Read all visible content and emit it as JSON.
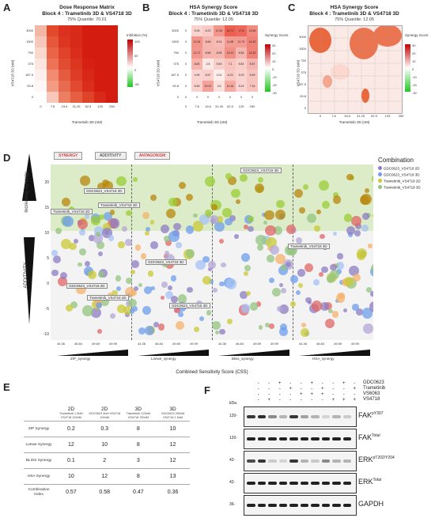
{
  "panel_a": {
    "letter": "A",
    "title": "Dose Response Matrix",
    "subtitle": "Block 4 : Trametinib 3D & VS4718 3D",
    "quantile": "75% Quantile: 70.01",
    "xlabel": "Trametinib 3D (nM)",
    "ylabel": "VS4718 3D (nM)",
    "legend_title": "Inhibition (%)",
    "legend_ticks": [
      "100",
      "50",
      "0",
      "-50"
    ],
    "x_ticks": [
      "0",
      "7.8",
      "15.6",
      "31.25",
      "62.5",
      "125",
      "250"
    ],
    "y_ticks": [
      "3000",
      "1500",
      "750",
      "375",
      "187.5",
      "93.8",
      "0"
    ]
  },
  "panel_b": {
    "letter": "B",
    "title": "HSA Synergy Score",
    "subtitle": "Block 4 : Trametinib 3D & VS4718 3D",
    "quantile": "75% Quantile: 12.05",
    "xlabel": "Trametinib 3D (nM)",
    "ylabel": "VS4718 3D (nM)",
    "legend_title": "Synergy Score",
    "legend_ticks": [
      "30",
      "20",
      "10",
      "0",
      "-10",
      "-20",
      "-30"
    ],
    "x_ticks": [
      "0",
      "7.8",
      "15.6",
      "31.25",
      "62.5",
      "125",
      "250"
    ],
    "y_ticks": [
      "3000",
      "1500",
      "750",
      "375",
      "187.5",
      "93.8",
      "0"
    ],
    "matrix": [
      [
        "0",
        "5.26",
        "6.23",
        "12.52",
        "18.71",
        "17.8",
        "13.69"
      ],
      [
        "0",
        "12.64",
        "8.65",
        "8.14",
        "11.68",
        "11.74",
        "14.62"
      ],
      [
        "0",
        "12.27",
        "8.68",
        "8.55",
        "13.21",
        "8.55",
        "14.62"
      ],
      [
        "0",
        "8.83",
        "2.8",
        "5.63",
        "7.1",
        "5.82",
        "8.57"
      ],
      [
        "0",
        "4.99",
        "5.57",
        "2.01",
        "6.23",
        "5.29",
        "6.99"
      ],
      [
        "0",
        "5.45",
        "10.97",
        "3.6",
        "10.16",
        "5.24",
        "7.16"
      ],
      [
        "0",
        "0",
        "0",
        "0",
        "0",
        "0",
        "0"
      ]
    ]
  },
  "panel_c": {
    "letter": "C",
    "title": "HSA Synergy Score",
    "subtitle": "Block 4 : Trametinib 3D & VS4718 3D",
    "quantile": "75% Quantile: 12.05",
    "xlabel": "Trametinib 3D (nM)",
    "ylabel": "VS4718 3D (nM)",
    "legend_title": "Synergy Score",
    "legend_ticks": [
      "30",
      "20",
      "10",
      "0",
      "-10",
      "-20",
      "-30"
    ],
    "x_ticks": [
      "0",
      "7.8",
      "15.6",
      "31.25",
      "62.5",
      "125",
      "250"
    ],
    "y_ticks": [
      "3000",
      "1500",
      "750",
      "375",
      "187.5",
      "93.8",
      "0"
    ]
  },
  "panel_d": {
    "letter": "D",
    "zones": [
      "SYNERGY",
      "ADDITIVITY",
      "ANTAGONISM"
    ],
    "y_label_top": "Increasing Synergy",
    "y_label_side": "ADDITIVITY",
    "xlabel": "Combined Sensitivity Score (CSS)",
    "legend_title": "Combination",
    "legend": [
      {
        "label": "GDC0623_VS4718 2D",
        "color": "#8e7cc3"
      },
      {
        "label": "GDC0623_VS4718 3D",
        "color": "#6d9eeb"
      },
      {
        "label": "Trametinib_VS4718 2D",
        "color": "#c9c935"
      },
      {
        "label": "Trametinib_VS4718 3D",
        "color": "#93c47d"
      }
    ],
    "y_ticks": [
      "20",
      "15",
      "10",
      "5",
      "0",
      "-5",
      "-10"
    ],
    "x_ticks": [
      "44.36",
      "46.84",
      "49.69",
      "49.99"
    ],
    "sub_axes": [
      "ZIP_synergy",
      "Loewe_synergy",
      "Bliss_synergy",
      "HSA_synergy"
    ],
    "labels": [
      "GDC0623_VS4718 3D",
      "GDC0623_VS4718 2D",
      "Trametinib_VS4718 3D",
      "Trametinib_VS4718 2D",
      "GDC0623_VS4718 3D",
      "Trametinib_VS4718 3D",
      "GDC0623_VS4718 2D",
      "Trametinib_VS4718 2D",
      "GDC0623_VS4718 3D"
    ]
  },
  "panel_e": {
    "letter": "E",
    "columns": [
      {
        "dim": "2D",
        "sub": "Trametinib 1.5nM VS4718 100nM"
      },
      {
        "dim": "2D",
        "sub": "GDC0623 3nM VS4718 100nM"
      },
      {
        "dim": "3D",
        "sub": "Trametinib 125nM VS4718 750nM"
      },
      {
        "dim": "3D",
        "sub": "GDC0623 250nM VS4718 1.5uM"
      }
    ],
    "rows": [
      {
        "label": "ZIP Synergy",
        "values": [
          "0.2",
          "0.3",
          "8",
          "10"
        ]
      },
      {
        "label": "Loewe Synergy",
        "values": [
          "12",
          "10",
          "8",
          "12"
        ]
      },
      {
        "label": "BLISS Synergy",
        "values": [
          "0.1",
          "2",
          "3",
          "12"
        ]
      },
      {
        "label": "HSA Synergy",
        "values": [
          "10",
          "12",
          "8",
          "13"
        ]
      },
      {
        "label": "Combination Index",
        "values": [
          "0.57",
          "0.58",
          "0.47",
          "0.36"
        ]
      }
    ]
  },
  "panel_f": {
    "letter": "F",
    "kda_label": "kDa",
    "treatments": [
      "GDC0623",
      "Trametinib",
      "VS6063",
      "VS4718"
    ],
    "treatment_rows": [
      [
        "-",
        "-",
        "+",
        "-",
        "-",
        "+",
        "-",
        "-",
        "+",
        "-"
      ],
      [
        "-",
        "-",
        "-",
        "+",
        "-",
        "-",
        "+",
        "-",
        "-",
        "+"
      ],
      [
        "-",
        "-",
        "-",
        "-",
        "+",
        "+",
        "+",
        "-",
        "-",
        "-"
      ],
      [
        "-",
        "+",
        "-",
        "-",
        "-",
        "-",
        "-",
        "+",
        "+",
        "+"
      ]
    ],
    "blots": [
      {
        "label": "FAK",
        "sup": "pY397",
        "mw": "120-"
      },
      {
        "label": "FAK",
        "sup": "Total",
        "mw": "120-"
      },
      {
        "label": "ERK",
        "sup": "pT202/Y204",
        "mw": "42-"
      },
      {
        "label": "ERK",
        "sup": "Total",
        "mw": "42-"
      },
      {
        "label": "GAPDH",
        "sup": "",
        "mw": "36-"
      }
    ]
  }
}
